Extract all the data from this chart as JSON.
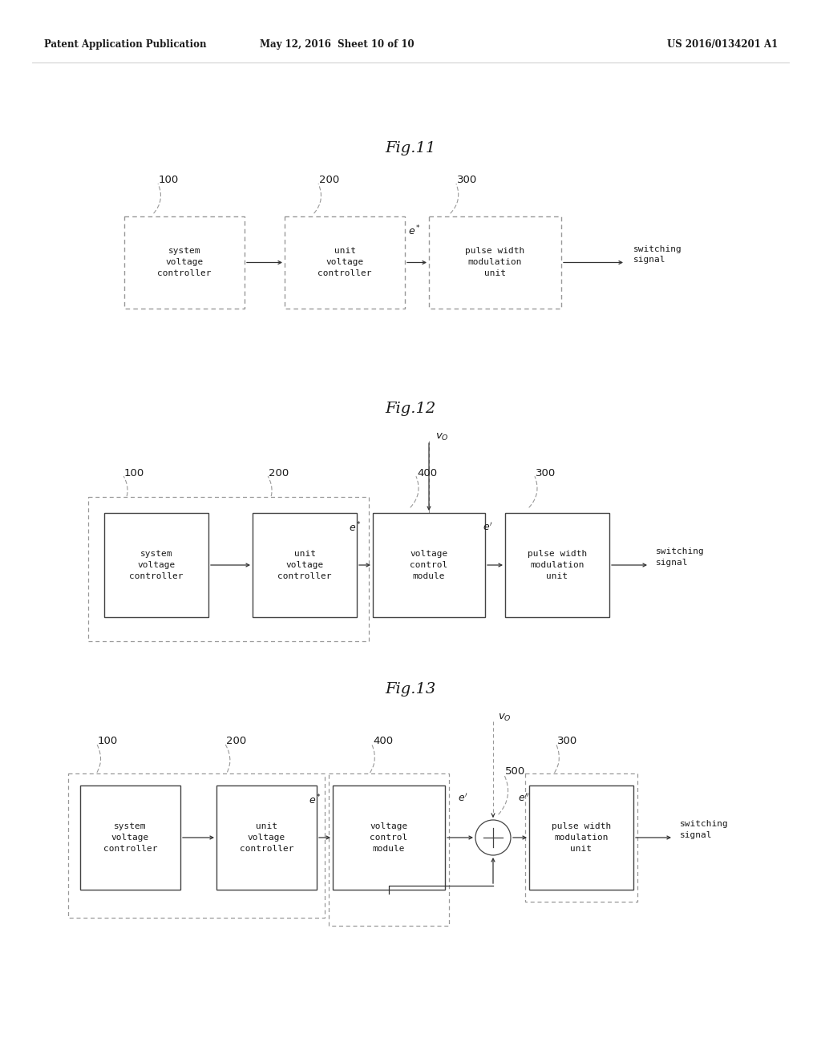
{
  "bg_color": "#ffffff",
  "header_left": "Patent Application Publication",
  "header_mid": "May 12, 2016  Sheet 10 of 10",
  "header_right": "US 2016/0134201 A1",
  "fig11_title": "Fig.11",
  "fig12_title": "Fig.12",
  "fig13_title": "Fig.13",
  "text_color": "#1a1a1a",
  "box_edge_color": "#444444",
  "arrow_color": "#333333",
  "dashed_color": "#999999"
}
